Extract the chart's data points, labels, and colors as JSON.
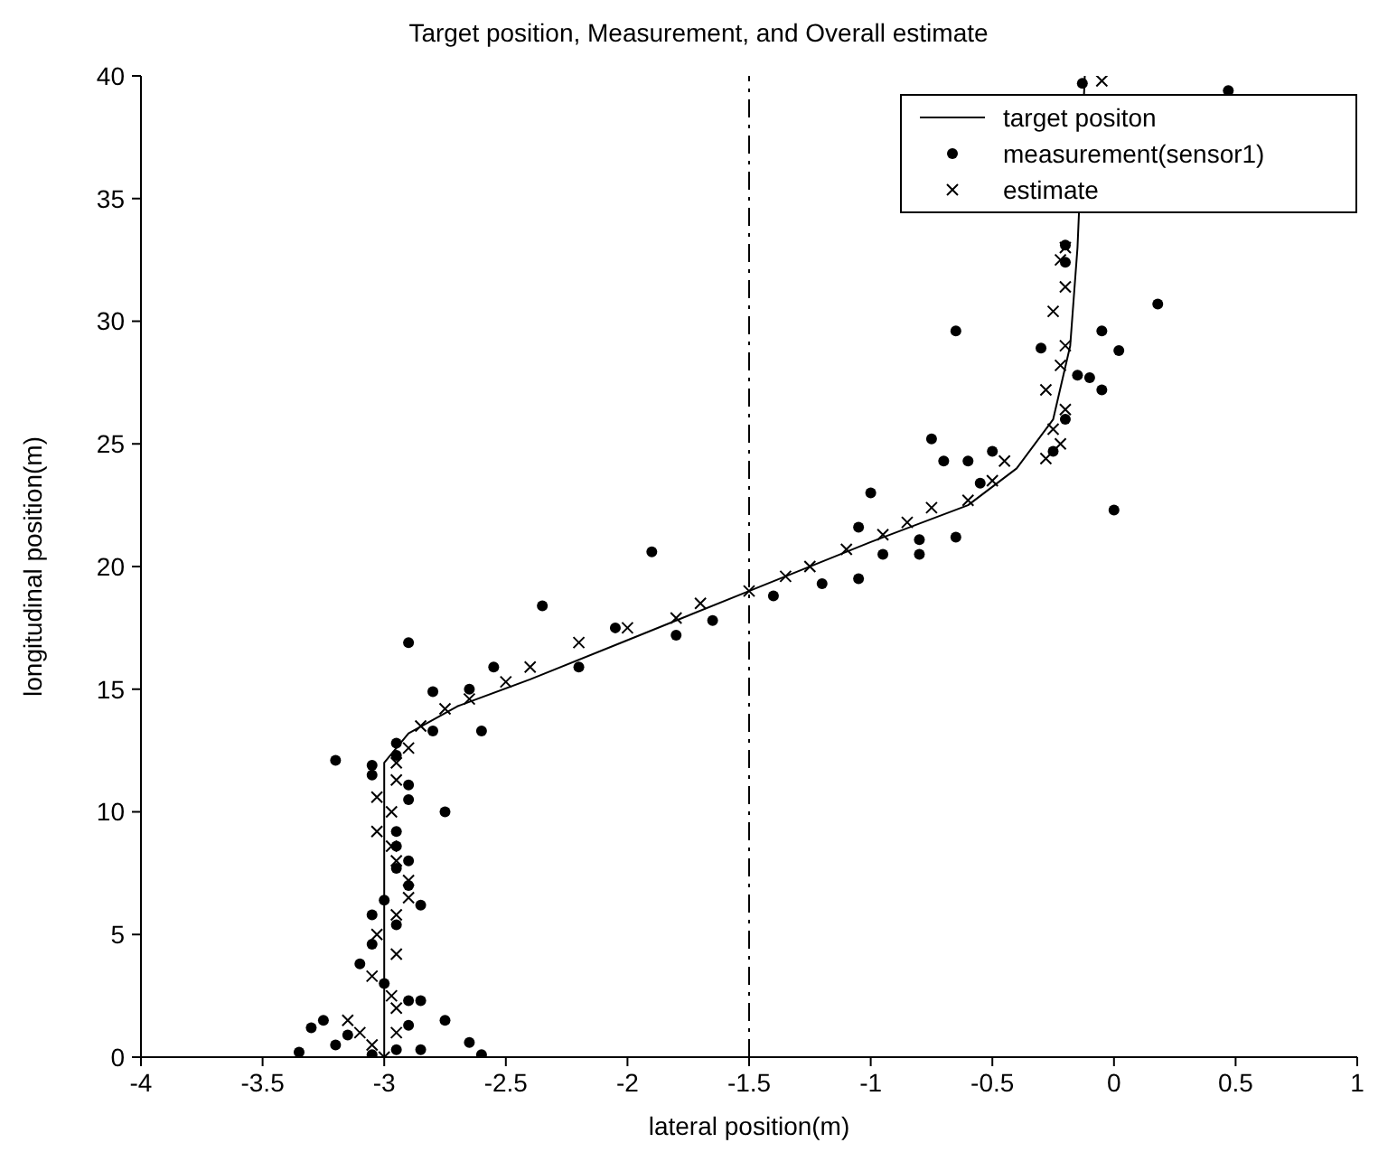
{
  "chart_data": {
    "type": "scatter",
    "title": "Target position, Measurement, and Overall estimate",
    "xlabel": "lateral position(m)",
    "ylabel": "longitudinal position(m)",
    "xlim": [
      -4,
      1
    ],
    "xticks": [
      -4,
      -3.5,
      -3,
      -2.5,
      -2,
      -1.5,
      -1,
      -0.5,
      0,
      0.5,
      1
    ],
    "ylim": [
      0,
      40
    ],
    "yticks": [
      0,
      5,
      10,
      15,
      20,
      25,
      30,
      35,
      40
    ],
    "grid": false,
    "legend": "top right",
    "ref_lines": [
      {
        "axis": "x",
        "value": -1.5,
        "color": "#000000",
        "line_style": "dashed"
      }
    ],
    "series": [
      {
        "name": "target positon",
        "type": "line",
        "color": "#000000",
        "marker": "none",
        "line_style": "solid",
        "x": [
          -3,
          -3,
          -2.9,
          -2.7,
          -2.4,
          -2,
          -1.5,
          -1,
          -0.6,
          -0.4,
          -0.25,
          -0.18,
          -0.15,
          -0.12
        ],
        "values": [
          0,
          12,
          13.2,
          14.3,
          15.4,
          17,
          19,
          21,
          22.5,
          24,
          26,
          29,
          33,
          40
        ]
      },
      {
        "name": "measurement(sensor1)",
        "type": "scatter",
        "color": "#000000",
        "marker": "circle",
        "x": [
          -3.35,
          -3.25,
          -3.2,
          -3.15,
          -3.05,
          -2.95,
          -2.85,
          -2.6,
          -2.65,
          -2.75,
          -2.9,
          -3.3,
          -2.85,
          -2.9,
          -3,
          -3.1,
          -3.05,
          -2.95,
          -3.05,
          -3,
          -2.85,
          -2.9,
          -2.95,
          -2.9,
          -2.95,
          -2.95,
          -2.75,
          -2.9,
          -2.9,
          -3.2,
          -3.05,
          -3.05,
          -2.95,
          -2.95,
          -2.9,
          -2.8,
          -2.8,
          -2.65,
          -2.6,
          -2.55,
          -2.35,
          -2.2,
          -2.05,
          -1.9,
          -1.8,
          -1.65,
          -1.4,
          -1.2,
          -1.05,
          -0.95,
          -1.05,
          -1,
          -0.8,
          -0.8,
          -0.65,
          -0.7,
          -0.75,
          -0.6,
          -0.55,
          -0.5,
          -0.65,
          -0.3,
          -0.25,
          -0.2,
          -0.15,
          -0.1,
          -0.05,
          0.02,
          -0.05,
          0,
          0.18,
          -0.2,
          -0.2,
          0.47,
          -0.13
        ],
        "values": [
          0.2,
          1.5,
          0.5,
          0.9,
          0.1,
          0.3,
          0.3,
          0.1,
          0.6,
          1.5,
          1.3,
          1.2,
          2.3,
          2.3,
          3,
          3.8,
          4.6,
          5.4,
          5.8,
          6.4,
          6.2,
          7,
          7.7,
          8,
          8.6,
          9.2,
          10,
          10.5,
          11.1,
          12.1,
          11.9,
          11.5,
          12.3,
          12.8,
          16.9,
          13.3,
          14.9,
          15,
          13.3,
          15.9,
          18.4,
          15.9,
          17.5,
          20.6,
          17.2,
          17.8,
          18.8,
          19.3,
          19.5,
          20.5,
          21.6,
          23,
          21.1,
          20.5,
          21.2,
          24.3,
          25.2,
          24.3,
          23.4,
          24.7,
          29.6,
          28.9,
          24.7,
          26,
          27.8,
          27.7,
          29.6,
          28.8,
          27.2,
          22.3,
          30.7,
          32.4,
          33.1,
          39.4,
          39.7
        ]
      },
      {
        "name": "estimate",
        "type": "scatter",
        "color": "#000000",
        "marker": "cross",
        "x": [
          -3,
          -3.05,
          -3.1,
          -2.95,
          -3.15,
          -2.95,
          -2.97,
          -3.05,
          -2.95,
          -3.03,
          -2.95,
          -2.9,
          -2.9,
          -2.95,
          -2.97,
          -3.03,
          -2.97,
          -3.03,
          -2.95,
          -2.95,
          -2.9,
          -2.85,
          -2.75,
          -2.65,
          -2.5,
          -2.4,
          -2.2,
          -2,
          -1.8,
          -1.7,
          -1.5,
          -1.35,
          -1.25,
          -1.1,
          -0.95,
          -0.85,
          -0.75,
          -0.6,
          -0.5,
          -0.45,
          -0.28,
          -0.22,
          -0.25,
          -0.2,
          -0.28,
          -0.22,
          -0.2,
          -0.25,
          -0.2,
          -0.22,
          -0.2,
          -0.05
        ],
        "values": [
          0,
          0.5,
          1,
          1,
          1.5,
          2,
          2.5,
          3.3,
          4.2,
          5,
          5.8,
          6.5,
          7.2,
          8,
          8.6,
          9.2,
          10,
          10.6,
          11.3,
          12,
          12.6,
          13.5,
          14.2,
          14.6,
          15.3,
          15.9,
          16.9,
          17.5,
          17.9,
          18.5,
          19,
          19.6,
          20,
          20.7,
          21.3,
          21.8,
          22.4,
          22.7,
          23.5,
          24.3,
          24.4,
          25,
          25.6,
          26.4,
          27.2,
          28.2,
          29,
          30.4,
          31.4,
          32.5,
          33,
          39.8
        ]
      }
    ]
  }
}
